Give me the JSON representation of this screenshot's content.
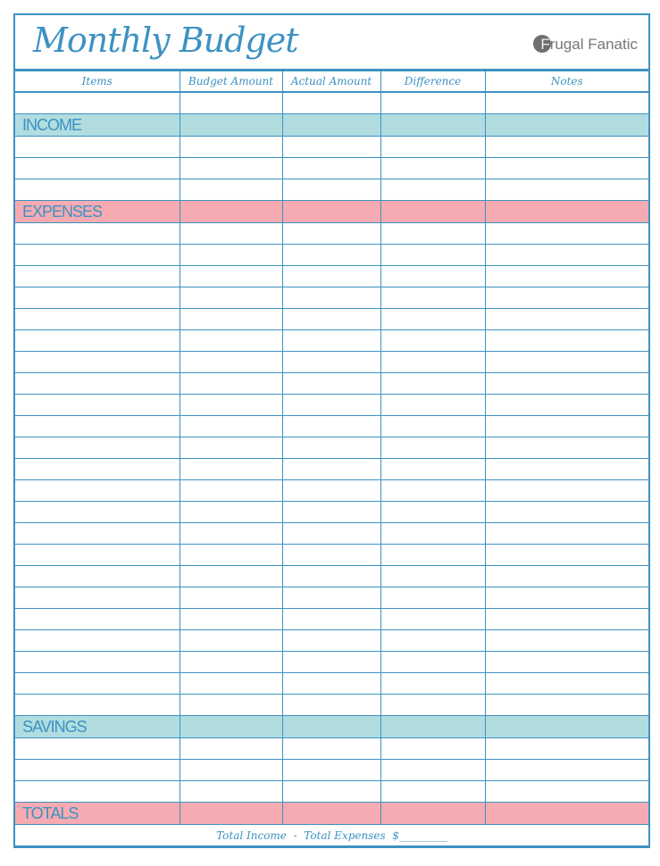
{
  "title": "Monthly Budget",
  "brand": {
    "circle_letter": "F",
    "text": "rugal Fanatic"
  },
  "columns": [
    "Items",
    "Budget Amount",
    "Actual Amount",
    "Difference",
    "Notes"
  ],
  "sections": [
    {
      "label": "",
      "color": "none",
      "rows": 0,
      "blank_top": 1
    },
    {
      "label": "INCOME",
      "color": "#b1dde0",
      "rows": 3
    },
    {
      "label": "EXPENSES",
      "color": "#f5abb1",
      "rows": 23
    },
    {
      "label": "SAVINGS",
      "color": "#b1dde0",
      "rows": 3
    },
    {
      "label": "TOTALS",
      "color": "#f5abb1",
      "rows": 0
    }
  ],
  "footer": {
    "left": "Total Income",
    "dash": "-",
    "right": "Total Expenses",
    "currency": "$",
    "blank": "_________"
  },
  "colors": {
    "border": "#3d92c2",
    "income": "#b1dde0",
    "expenses": "#f5abb1"
  }
}
